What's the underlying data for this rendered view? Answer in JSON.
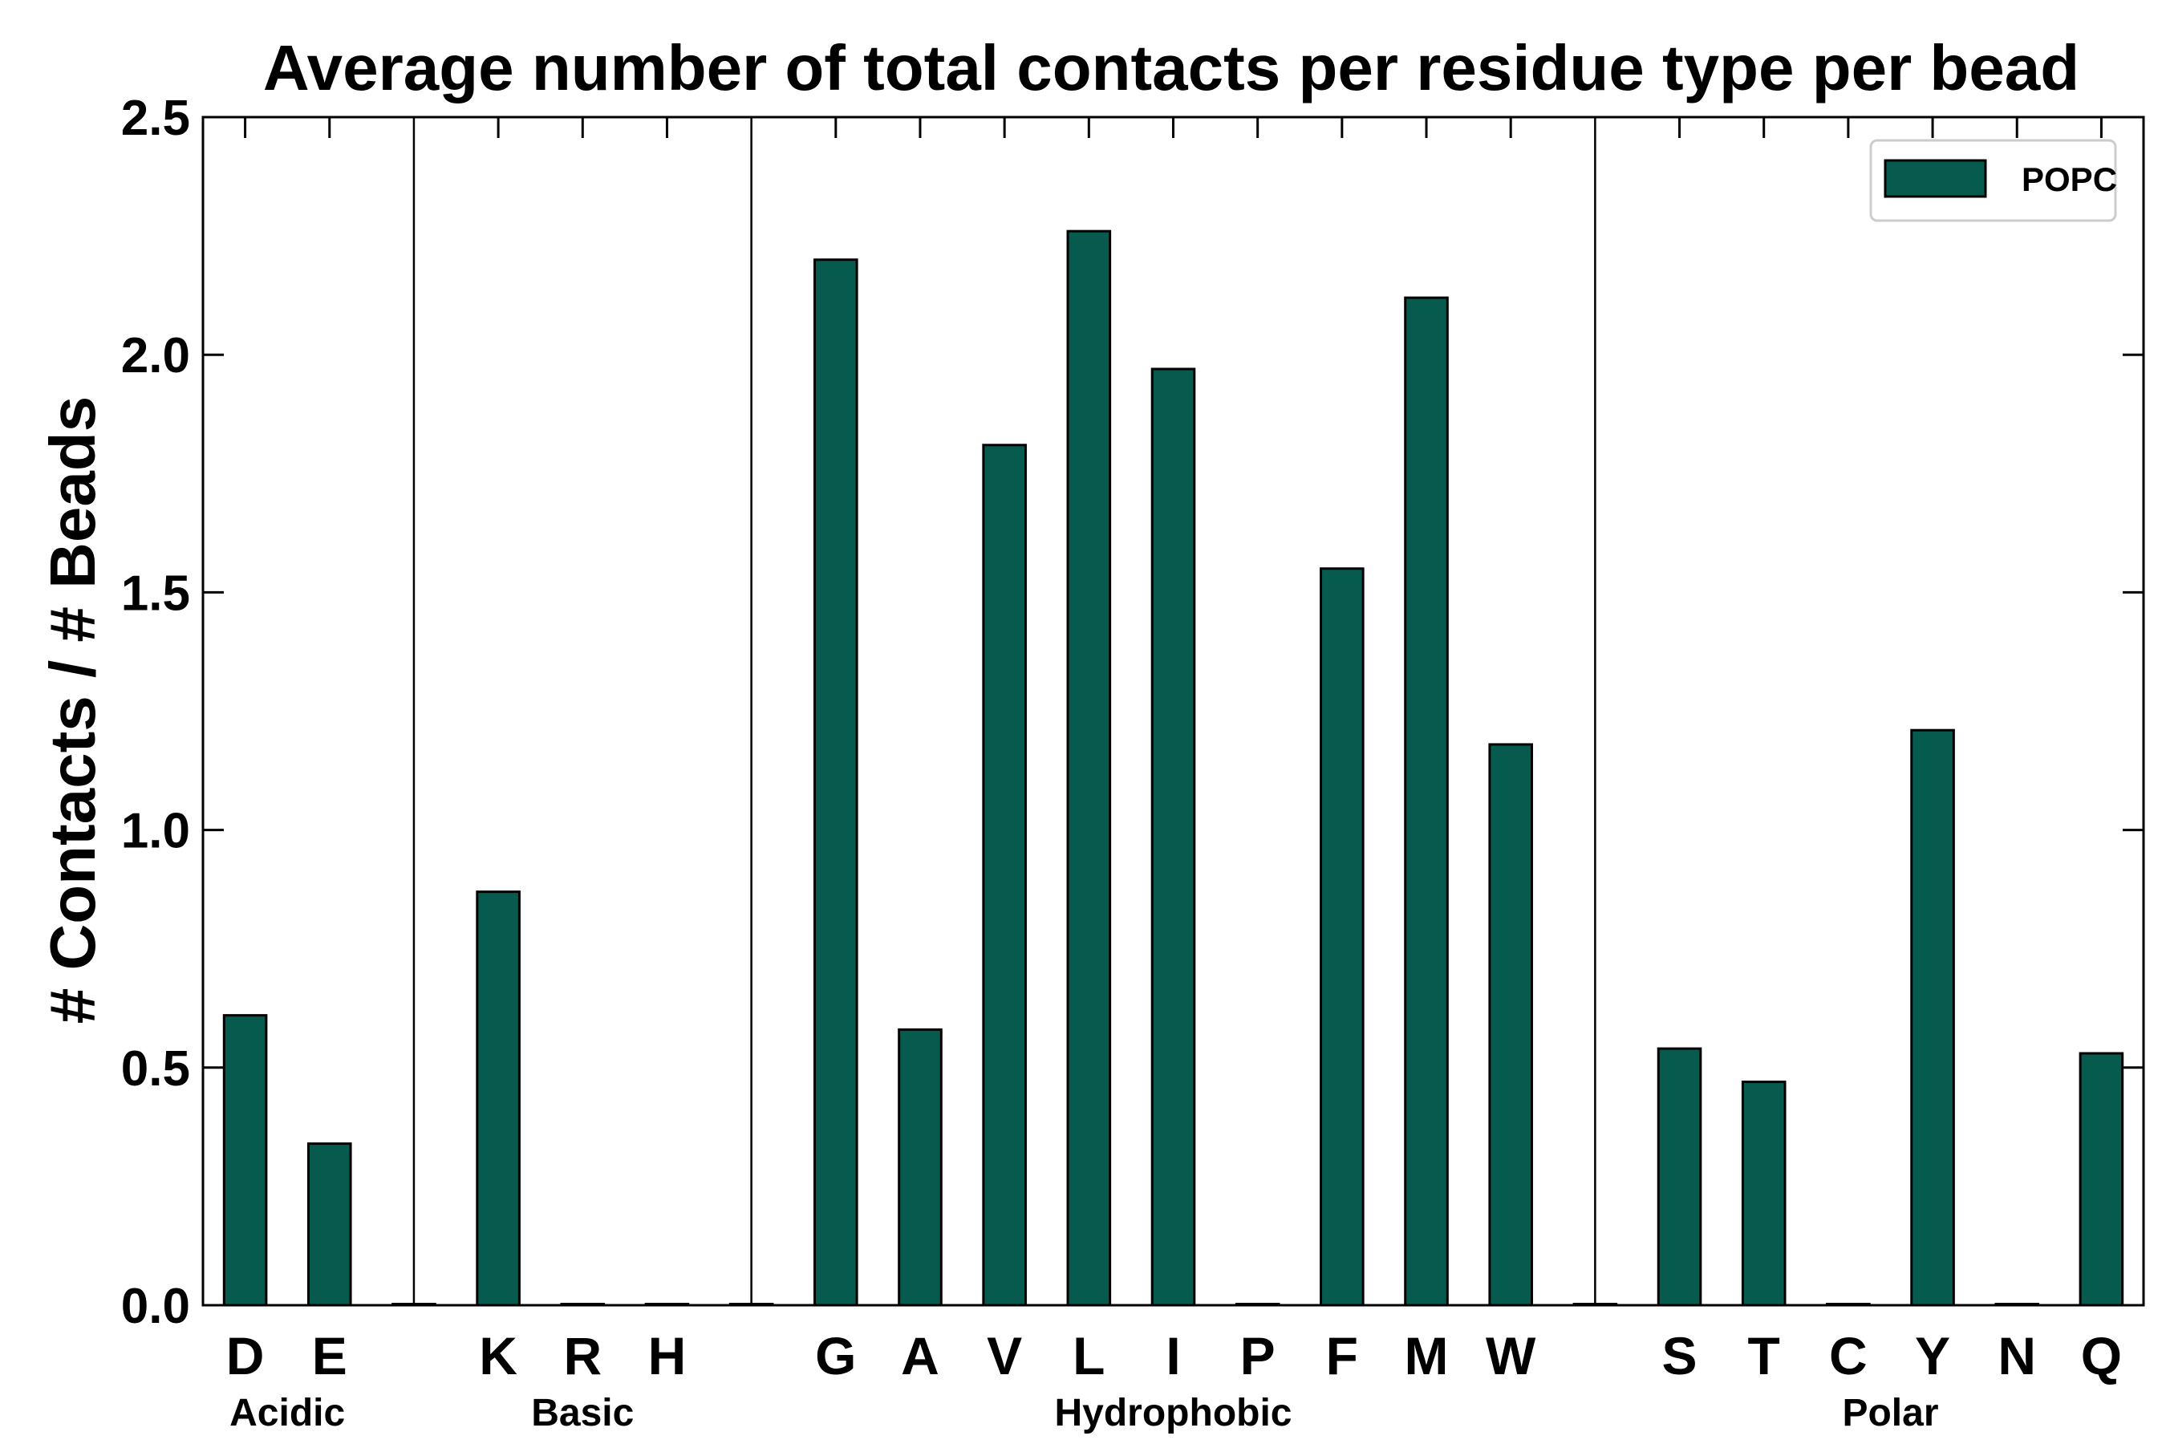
{
  "chart_data": {
    "type": "bar",
    "title": "Average number of total contacts per residue type per bead",
    "xlabel": "",
    "ylabel": "# Contacts / # Beads",
    "ylim": [
      0,
      2.5
    ],
    "yticks": [
      "0.0",
      "0.5",
      "1.0",
      "1.5",
      "2.0",
      "2.5"
    ],
    "legend_position": "top-right",
    "bar_color": "#075b4e",
    "categories": [
      "D",
      "E",
      "",
      "K",
      "R",
      "H",
      "",
      "G",
      "A",
      "V",
      "L",
      "I",
      "P",
      "F",
      "M",
      "W",
      "",
      "S",
      "T",
      "C",
      "Y",
      "N",
      "Q"
    ],
    "series": [
      {
        "name": "POPC",
        "values": [
          0.61,
          0.34,
          0,
          0.87,
          0,
          0,
          0,
          2.2,
          0.58,
          1.81,
          2.26,
          1.97,
          0,
          1.55,
          2.12,
          1.18,
          0,
          0.54,
          0.47,
          0,
          1.21,
          0,
          0.53
        ]
      }
    ],
    "groups": [
      {
        "label": "Acidic",
        "start": 0,
        "end": 1
      },
      {
        "label": "Basic",
        "start": 3,
        "end": 5
      },
      {
        "label": "Hydrophobic",
        "start": 7,
        "end": 15
      },
      {
        "label": "Polar",
        "start": 17,
        "end": 22
      }
    ],
    "separators_after": [
      2,
      6,
      16
    ]
  }
}
